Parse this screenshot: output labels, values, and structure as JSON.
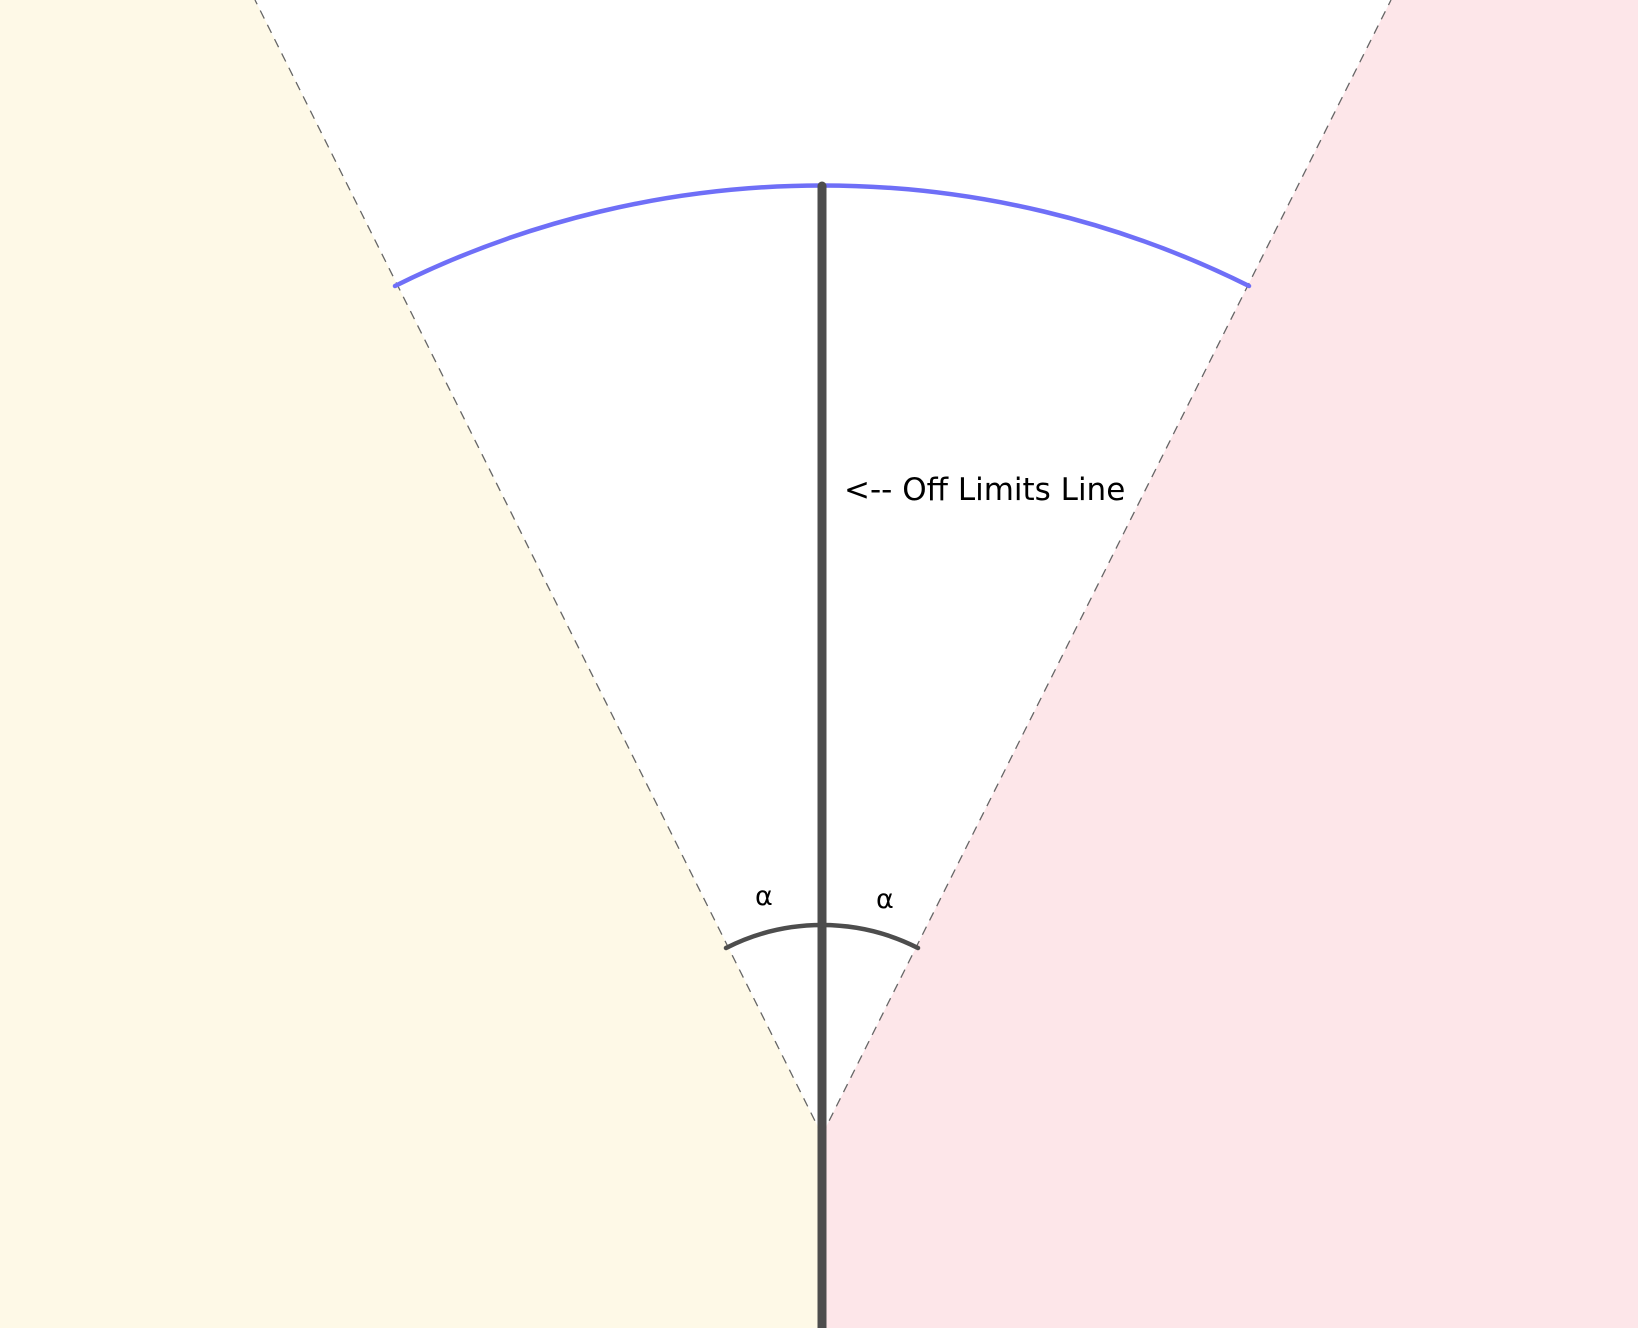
{
  "labels": {
    "off_limits": "<-- Off Limits Line",
    "angle_left": "α",
    "angle_right": "α"
  },
  "colors": {
    "left_region": "#fef9e7",
    "right_region": "#fde6e9",
    "center_wedge": "#ffffff",
    "outer_arc": "#6f6ff7",
    "center_line": "#4d4d4d",
    "dashed_lines": "#666666",
    "angle_arc": "#4d4d4d"
  },
  "angles": {
    "alpha_is_equal_on_both_sides": true
  }
}
